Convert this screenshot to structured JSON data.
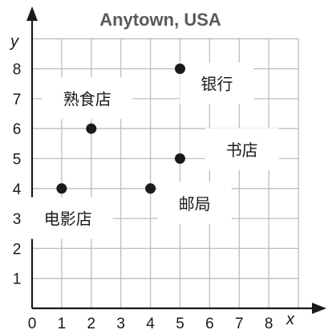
{
  "chart_data": {
    "type": "scatter",
    "title": "Anytown, USA",
    "xlabel": "x",
    "ylabel": "y",
    "xlim": [
      0,
      9
    ],
    "ylim": [
      0,
      9
    ],
    "x_ticks": [
      "0",
      "1",
      "2",
      "3",
      "4",
      "5",
      "6",
      "7",
      "8"
    ],
    "y_ticks": [
      "1",
      "2",
      "3",
      "4",
      "5",
      "6",
      "7",
      "8"
    ],
    "grid": true,
    "points": [
      {
        "x": 5,
        "y": 8
      },
      {
        "x": 2,
        "y": 6
      },
      {
        "x": 5,
        "y": 5
      },
      {
        "x": 1,
        "y": 4
      },
      {
        "x": 4,
        "y": 4
      }
    ],
    "annotations": [
      {
        "text": "银行",
        "x": 5.7,
        "y": 7.3
      },
      {
        "text": "熟食店",
        "x": 1.05,
        "y": 6.8
      },
      {
        "text": "书店",
        "x": 6.55,
        "y": 5.1
      },
      {
        "text": "邮局",
        "x": 4.95,
        "y": 3.3
      },
      {
        "text": "电影店",
        "x": 0.4,
        "y": 2.8
      }
    ]
  }
}
